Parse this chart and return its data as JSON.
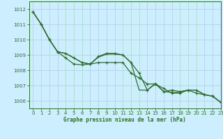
{
  "title": "Graphe pression niveau de la mer (hPa)",
  "background_color": "#cceeff",
  "grid_color": "#aaddcc",
  "line_color": "#2d6e2d",
  "xlim": [
    -0.5,
    23
  ],
  "ylim": [
    1005.5,
    1012.5
  ],
  "yticks": [
    1006,
    1007,
    1008,
    1009,
    1010,
    1011,
    1012
  ],
  "xticks": [
    0,
    1,
    2,
    3,
    4,
    5,
    6,
    7,
    8,
    9,
    10,
    11,
    12,
    13,
    14,
    15,
    16,
    17,
    18,
    19,
    20,
    21,
    22,
    23
  ],
  "series1_x": [
    0,
    1,
    2,
    3,
    4,
    5,
    6,
    7,
    8,
    9,
    10,
    11,
    12,
    13,
    14,
    15,
    16,
    17,
    18,
    19,
    20,
    21,
    22,
    23
  ],
  "series1_y": [
    1011.8,
    1011.0,
    1010.0,
    1009.2,
    1009.1,
    1008.8,
    1008.5,
    1008.4,
    1008.9,
    1009.1,
    1009.1,
    1009.0,
    1008.5,
    1007.8,
    1006.7,
    1007.1,
    1006.8,
    1006.5,
    1006.5,
    1006.7,
    1006.7,
    1006.4,
    1006.3,
    1005.9
  ],
  "series2_x": [
    0,
    1,
    2,
    3,
    4,
    5,
    6,
    7,
    8,
    9,
    10,
    11,
    12,
    13,
    14,
    15,
    16,
    17,
    18,
    19,
    20,
    21,
    22,
    23
  ],
  "series2_y": [
    1011.8,
    1011.0,
    1010.0,
    1009.2,
    1008.8,
    1008.4,
    1008.35,
    1008.4,
    1008.5,
    1008.5,
    1008.5,
    1008.5,
    1007.8,
    1007.5,
    1007.1,
    1007.1,
    1006.6,
    1006.7,
    1006.6,
    1006.7,
    1006.5,
    1006.4,
    1006.3,
    1005.9
  ],
  "series3_x": [
    0,
    1,
    2,
    3,
    4,
    5,
    6,
    7,
    8,
    9,
    10,
    11,
    12,
    13,
    14,
    15,
    16,
    17,
    18,
    19,
    20,
    21,
    22,
    23
  ],
  "series3_y": [
    1011.8,
    1011.0,
    1010.0,
    1009.2,
    1009.1,
    1008.8,
    1008.5,
    1008.4,
    1008.85,
    1009.05,
    1009.05,
    1009.0,
    1008.5,
    1006.7,
    1006.7,
    1007.15,
    1006.6,
    1006.55,
    1006.55,
    1006.7,
    1006.7,
    1006.4,
    1006.3,
    1005.9
  ]
}
